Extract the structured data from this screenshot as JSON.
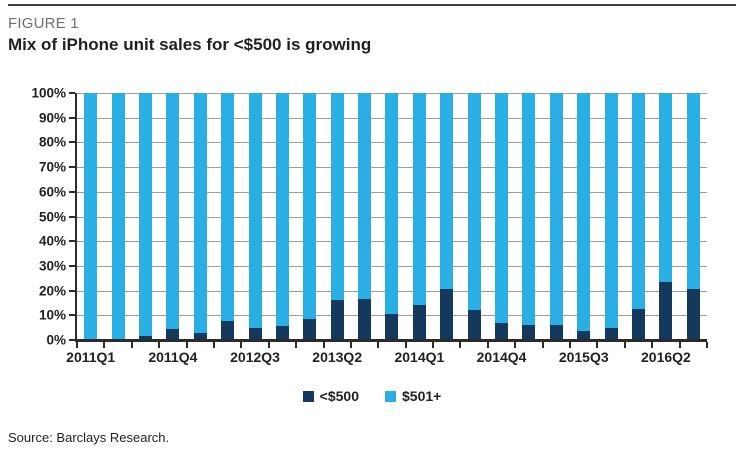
{
  "figure": {
    "label": "FIGURE 1",
    "title": "Mix of iPhone unit sales for <$500 is growing"
  },
  "source": "Source: Barclays Research.",
  "colors": {
    "navy": "#14395C",
    "cyan": "#2AAFE4",
    "grid": "#9B9DA0",
    "axis": "#2B2B2C",
    "figure_label_gray": "#6D6E71",
    "text": "#231F20"
  },
  "legend": [
    {
      "label": "<$500",
      "color": "#14395C"
    },
    {
      "label": "$501+",
      "color": "#2AAFE4"
    }
  ],
  "chart_data": {
    "type": "bar",
    "stacked": true,
    "title": "Mix of iPhone unit sales for <$500 is growing",
    "xlabel": "",
    "ylabel": "",
    "ylim": [
      0,
      100
    ],
    "ytick_step": 10,
    "ytick_labels": [
      "0%",
      "10%",
      "20%",
      "30%",
      "40%",
      "50%",
      "60%",
      "70%",
      "80%",
      "90%",
      "100%"
    ],
    "grid": true,
    "legend_position": "bottom",
    "categories": [
      "2011Q1",
      "2011Q2",
      "2011Q3",
      "2011Q4",
      "2012Q1",
      "2012Q2",
      "2012Q3",
      "2012Q4",
      "2013Q1",
      "2013Q2",
      "2013Q3",
      "2013Q4",
      "2014Q1",
      "2014Q2",
      "2014Q3",
      "2014Q4",
      "2015Q1",
      "2015Q2",
      "2015Q3",
      "2015Q4",
      "2016Q1",
      "2016Q2",
      "2016Q3"
    ],
    "labeled_indices": [
      0,
      3,
      6,
      9,
      12,
      15,
      18,
      21
    ],
    "x_tick_labels": [
      "2011Q1",
      "2011Q4",
      "2012Q3",
      "2013Q2",
      "2014Q1",
      "2014Q4",
      "2015Q3",
      "2016Q2"
    ],
    "series": [
      {
        "name": "<$500",
        "color": "#14395C",
        "values": [
          0.3,
          0.5,
          1.5,
          4.5,
          3,
          7.5,
          5,
          5.5,
          8.5,
          16,
          16.5,
          10.5,
          14,
          20.5,
          12,
          7,
          6,
          6,
          3.5,
          5,
          12.5,
          23.5,
          20.5
        ]
      },
      {
        "name": "$501+",
        "color": "#2AAFE4",
        "values": [
          99.7,
          99.5,
          98.5,
          95.5,
          97,
          92.5,
          95,
          94.5,
          91.5,
          84,
          83.5,
          89.5,
          86,
          79.5,
          88,
          93,
          94,
          94,
          96.5,
          95,
          87.5,
          76.5,
          79.5
        ]
      }
    ]
  }
}
